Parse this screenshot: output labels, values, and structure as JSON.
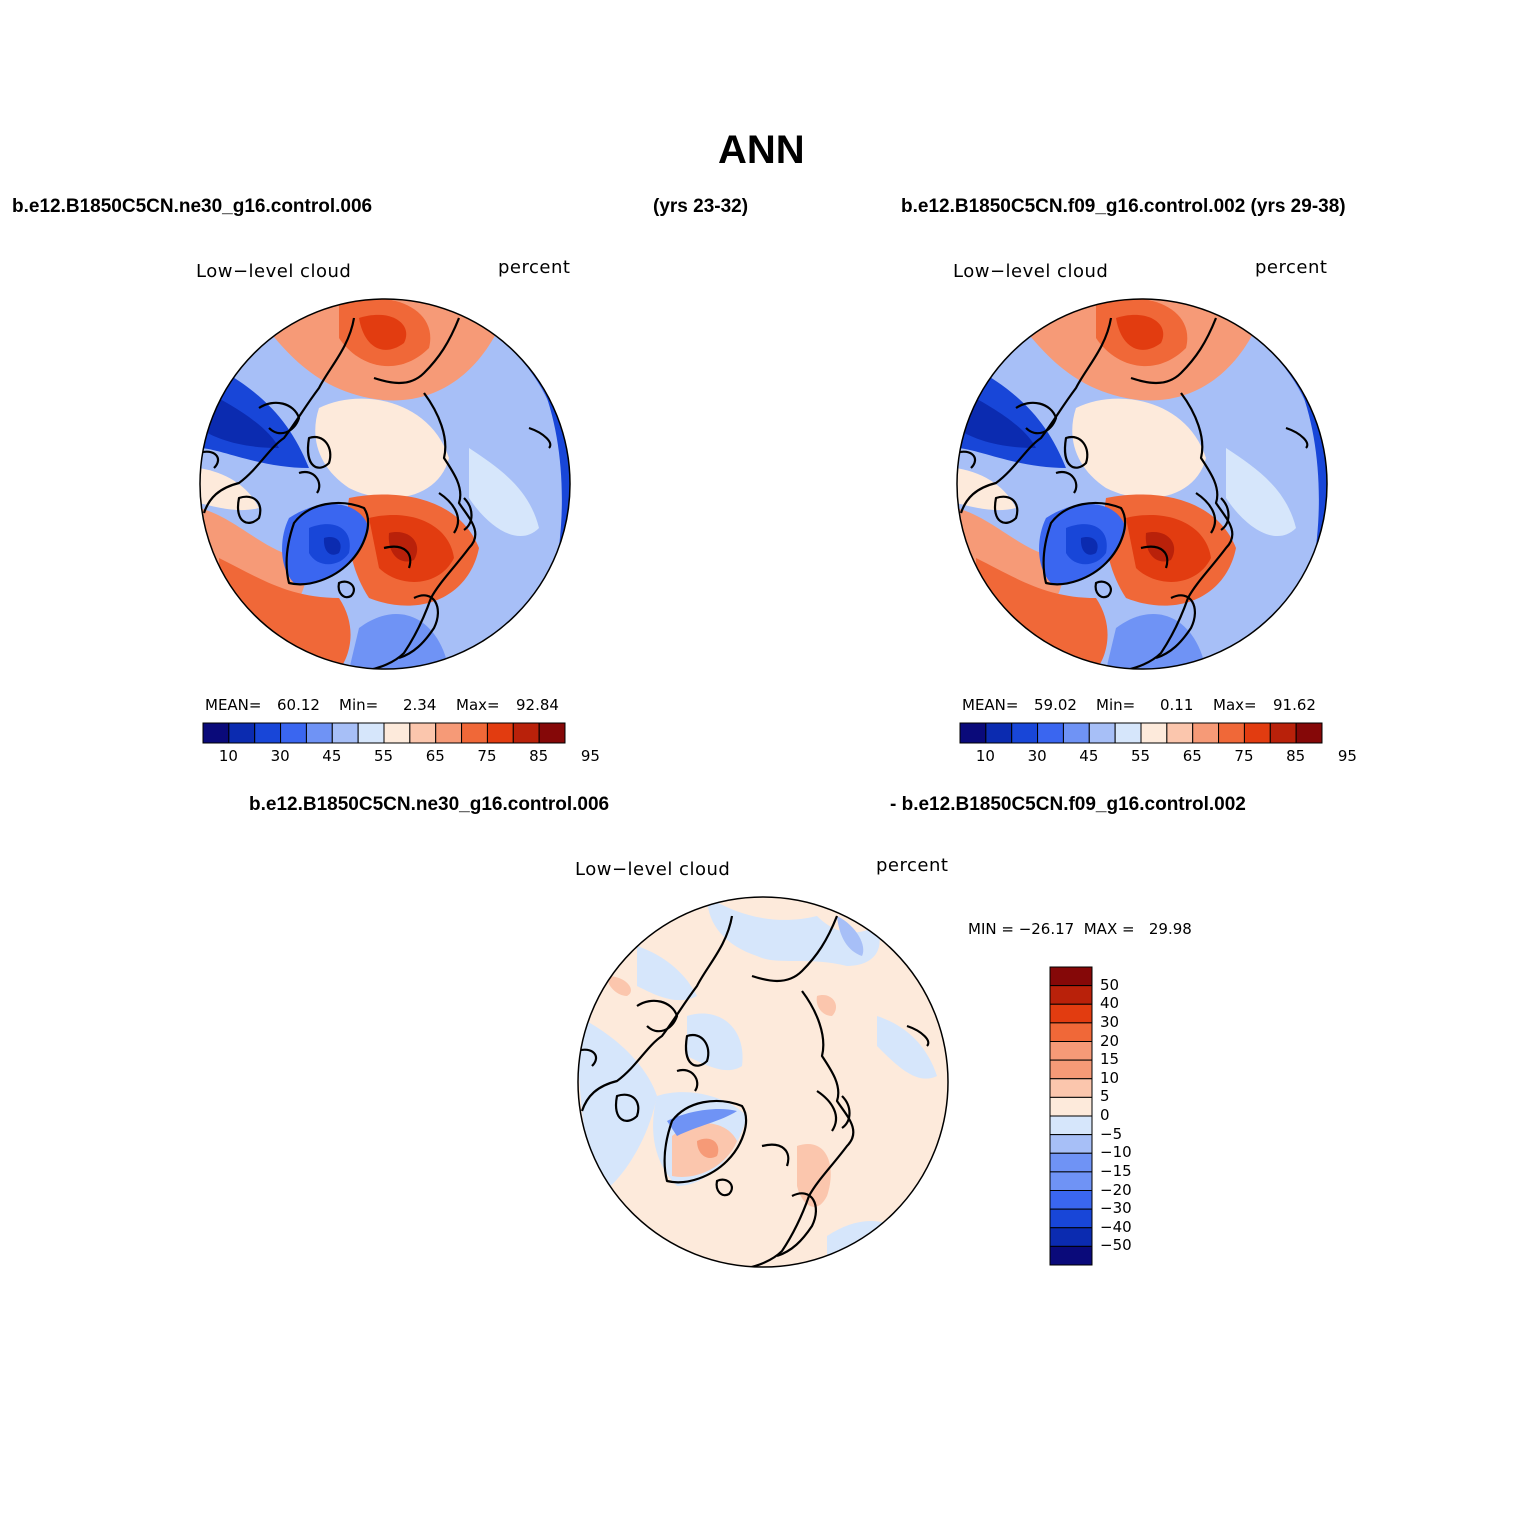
{
  "title": "ANN",
  "header": {
    "case1": "b.e12.B1850C5CN.ne30_g16.control.006",
    "case1_years": "(yrs 23-32)",
    "case2": "b.e12.B1850C5CN.f09_g16.control.002 (yrs 29-38)",
    "diff_case1": "b.e12.B1850C5CN.ne30_g16.control.006",
    "diff_case2": "- b.e12.B1850C5CN.f09_g16.control.002"
  },
  "colors": {
    "abs_palette": [
      "#0a0a7a",
      "#0b2bb0",
      "#1846d8",
      "#3a66f0",
      "#6f93f5",
      "#a7bff7",
      "#d6e6fb",
      "#fdeadb",
      "#fbc6ad",
      "#f69a77",
      "#f06838",
      "#e23c10",
      "#b9210a",
      "#850808"
    ],
    "diff_palette": [
      "#0a0a7a",
      "#0b2bb0",
      "#1846d8",
      "#3a66f0",
      "#6f93f5",
      "#a7bff7",
      "#d6e6fb",
      "#fdeadb",
      "#fbc6ad",
      "#f69a77",
      "#f06838",
      "#e23c10",
      "#b9210a",
      "#850808"
    ]
  },
  "panels": [
    {
      "id": "panel1",
      "variable": "Low−level cloud",
      "units": "percent",
      "stats": {
        "mean_label": "MEAN=",
        "mean": "60.12",
        "min_label": "Min=",
        "min": "2.34",
        "max_label": "Max=",
        "max": "92.84"
      },
      "colorbar_ticks": [
        "10",
        "30",
        "45",
        "55",
        "65",
        "75",
        "85",
        "95"
      ]
    },
    {
      "id": "panel2",
      "variable": "Low−level cloud",
      "units": "percent",
      "stats": {
        "mean_label": "MEAN=",
        "mean": "59.02",
        "min_label": "Min=",
        "min": "0.11",
        "max_label": "Max=",
        "max": "91.62"
      },
      "colorbar_ticks": [
        "10",
        "30",
        "45",
        "55",
        "65",
        "75",
        "85",
        "95"
      ]
    },
    {
      "id": "panel3",
      "variable": "Low−level cloud",
      "units": "percent",
      "stats_text": "MIN = −26.17  MAX =   29.98",
      "colorbar_ticks": [
        "50",
        "40",
        "30",
        "20",
        "15",
        "10",
        "5",
        "0",
        "−5",
        "−10",
        "−15",
        "−20",
        "−30",
        "−40",
        "−50"
      ]
    }
  ]
}
